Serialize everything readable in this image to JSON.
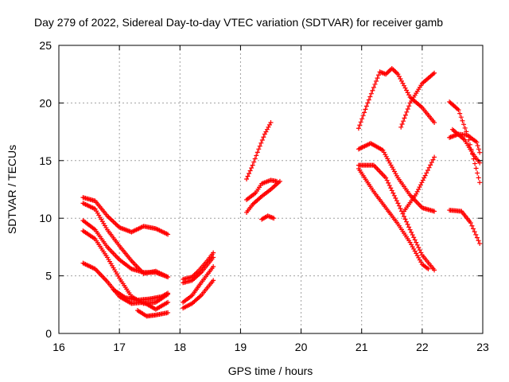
{
  "chart_data": {
    "type": "scatter",
    "title": "Day 279 of 2022, Sidereal Day-to-day VTEC variation (SDTVAR) for receiver gamb",
    "xlabel": "GPS time / hours",
    "ylabel": "SDTVAR / TECUs",
    "xlim": [
      16,
      23
    ],
    "ylim": [
      0,
      25
    ],
    "x_ticks": [
      "16",
      "17",
      "18",
      "19",
      "20",
      "21",
      "22",
      "23"
    ],
    "y_ticks": [
      "0",
      "5",
      "10",
      "15",
      "20",
      "25"
    ],
    "grid": true,
    "legend": "none",
    "marker": "plus",
    "color": "#ff0000",
    "series": [
      {
        "points": [
          [
            16.4,
            11.8
          ],
          [
            16.6,
            11.5
          ],
          [
            16.8,
            10.2
          ],
          [
            17.0,
            9.2
          ],
          [
            17.2,
            8.8
          ],
          [
            17.4,
            9.3
          ],
          [
            17.6,
            9.1
          ],
          [
            17.8,
            8.6
          ]
        ]
      },
      {
        "points": [
          [
            16.4,
            11.3
          ],
          [
            16.6,
            10.8
          ],
          [
            16.8,
            9.0
          ],
          [
            17.0,
            7.6
          ],
          [
            17.2,
            6.3
          ],
          [
            17.4,
            5.2
          ],
          [
            17.6,
            5.4
          ],
          [
            17.8,
            4.9
          ]
        ]
      },
      {
        "points": [
          [
            16.4,
            9.8
          ],
          [
            16.6,
            9.0
          ],
          [
            16.8,
            7.5
          ],
          [
            17.0,
            6.4
          ],
          [
            17.2,
            5.6
          ],
          [
            17.4,
            5.3
          ],
          [
            17.6,
            5.3
          ],
          [
            17.8,
            4.9
          ]
        ]
      },
      {
        "points": [
          [
            16.4,
            8.9
          ],
          [
            16.6,
            8.2
          ],
          [
            16.8,
            6.6
          ],
          [
            17.0,
            4.8
          ],
          [
            17.2,
            3.2
          ],
          [
            17.4,
            2.6
          ],
          [
            17.6,
            2.7
          ],
          [
            17.8,
            3.4
          ]
        ]
      },
      {
        "points": [
          [
            16.4,
            6.1
          ],
          [
            16.6,
            5.6
          ],
          [
            16.8,
            4.5
          ],
          [
            17.0,
            3.2
          ],
          [
            17.2,
            2.6
          ],
          [
            17.4,
            2.7
          ],
          [
            17.6,
            2.1
          ],
          [
            17.8,
            2.7
          ]
        ]
      },
      {
        "points": [
          [
            16.9,
            3.8
          ],
          [
            17.1,
            3.1
          ],
          [
            17.3,
            2.9
          ],
          [
            17.5,
            3.0
          ],
          [
            17.7,
            3.2
          ],
          [
            17.8,
            3.5
          ]
        ]
      },
      {
        "points": [
          [
            17.3,
            2.0
          ],
          [
            17.45,
            1.5
          ],
          [
            17.6,
            1.6
          ],
          [
            17.8,
            1.8
          ]
        ]
      },
      {
        "points": [
          [
            18.05,
            4.7
          ],
          [
            18.2,
            4.9
          ],
          [
            18.3,
            5.4
          ],
          [
            18.45,
            6.3
          ],
          [
            18.55,
            7.0
          ]
        ]
      },
      {
        "points": [
          [
            18.05,
            4.4
          ],
          [
            18.2,
            4.6
          ],
          [
            18.35,
            5.3
          ],
          [
            18.55,
            6.6
          ]
        ]
      },
      {
        "points": [
          [
            18.05,
            2.7
          ],
          [
            18.2,
            3.3
          ],
          [
            18.35,
            4.4
          ],
          [
            18.55,
            5.8
          ]
        ]
      },
      {
        "points": [
          [
            18.05,
            2.2
          ],
          [
            18.2,
            2.6
          ],
          [
            18.35,
            3.3
          ],
          [
            18.55,
            4.6
          ]
        ]
      },
      {
        "points": [
          [
            19.1,
            13.4
          ],
          [
            19.2,
            14.6
          ],
          [
            19.3,
            16.0
          ],
          [
            19.4,
            17.3
          ],
          [
            19.5,
            18.3
          ]
        ]
      },
      {
        "points": [
          [
            19.1,
            11.6
          ],
          [
            19.25,
            12.2
          ],
          [
            19.35,
            13.0
          ],
          [
            19.5,
            13.3
          ],
          [
            19.6,
            13.2
          ]
        ]
      },
      {
        "points": [
          [
            19.1,
            10.5
          ],
          [
            19.2,
            11.2
          ],
          [
            19.35,
            11.9
          ],
          [
            19.5,
            12.5
          ],
          [
            19.65,
            13.2
          ]
        ]
      },
      {
        "points": [
          [
            19.35,
            9.9
          ],
          [
            19.45,
            10.2
          ],
          [
            19.55,
            10.0
          ]
        ]
      },
      {
        "points": [
          [
            20.95,
            17.8
          ],
          [
            21.1,
            20.0
          ],
          [
            21.3,
            22.7
          ],
          [
            21.4,
            22.5
          ],
          [
            21.5,
            23.0
          ],
          [
            21.6,
            22.5
          ],
          [
            21.8,
            20.5
          ],
          [
            22.0,
            19.6
          ],
          [
            22.2,
            18.3
          ]
        ]
      },
      {
        "points": [
          [
            21.65,
            17.9
          ],
          [
            21.8,
            20.0
          ],
          [
            22.0,
            21.7
          ],
          [
            22.2,
            22.6
          ]
        ]
      },
      {
        "points": [
          [
            20.95,
            16.0
          ],
          [
            21.15,
            16.5
          ],
          [
            21.35,
            15.9
          ],
          [
            21.6,
            13.5
          ],
          [
            21.8,
            12.0
          ],
          [
            22.0,
            10.9
          ],
          [
            22.2,
            10.6
          ]
        ]
      },
      {
        "points": [
          [
            20.95,
            14.6
          ],
          [
            21.2,
            14.6
          ],
          [
            21.4,
            13.5
          ],
          [
            21.6,
            11.3
          ],
          [
            21.8,
            9.0
          ],
          [
            22.0,
            6.8
          ],
          [
            22.2,
            5.5
          ]
        ]
      },
      {
        "points": [
          [
            20.95,
            14.3
          ],
          [
            21.2,
            12.3
          ],
          [
            21.4,
            10.9
          ],
          [
            21.6,
            9.5
          ],
          [
            21.8,
            7.9
          ],
          [
            22.0,
            6.0
          ],
          [
            22.1,
            5.6
          ]
        ]
      },
      {
        "points": [
          [
            21.7,
            10.6
          ],
          [
            21.9,
            12.1
          ],
          [
            22.05,
            13.7
          ],
          [
            22.2,
            15.3
          ]
        ]
      },
      {
        "points": [
          [
            22.45,
            10.7
          ],
          [
            22.65,
            10.6
          ],
          [
            22.8,
            9.6
          ],
          [
            22.95,
            7.8
          ]
        ]
      },
      {
        "points": [
          [
            22.45,
            17.0
          ],
          [
            22.6,
            17.3
          ],
          [
            22.75,
            17.2
          ],
          [
            22.9,
            16.6
          ],
          [
            22.95,
            15.7
          ]
        ]
      },
      {
        "points": [
          [
            22.45,
            20.1
          ],
          [
            22.6,
            19.4
          ],
          [
            22.75,
            17.2
          ],
          [
            22.95,
            13.1
          ]
        ]
      },
      {
        "points": [
          [
            22.5,
            17.7
          ],
          [
            22.7,
            16.8
          ],
          [
            22.85,
            15.5
          ],
          [
            22.95,
            14.8
          ]
        ]
      }
    ]
  }
}
